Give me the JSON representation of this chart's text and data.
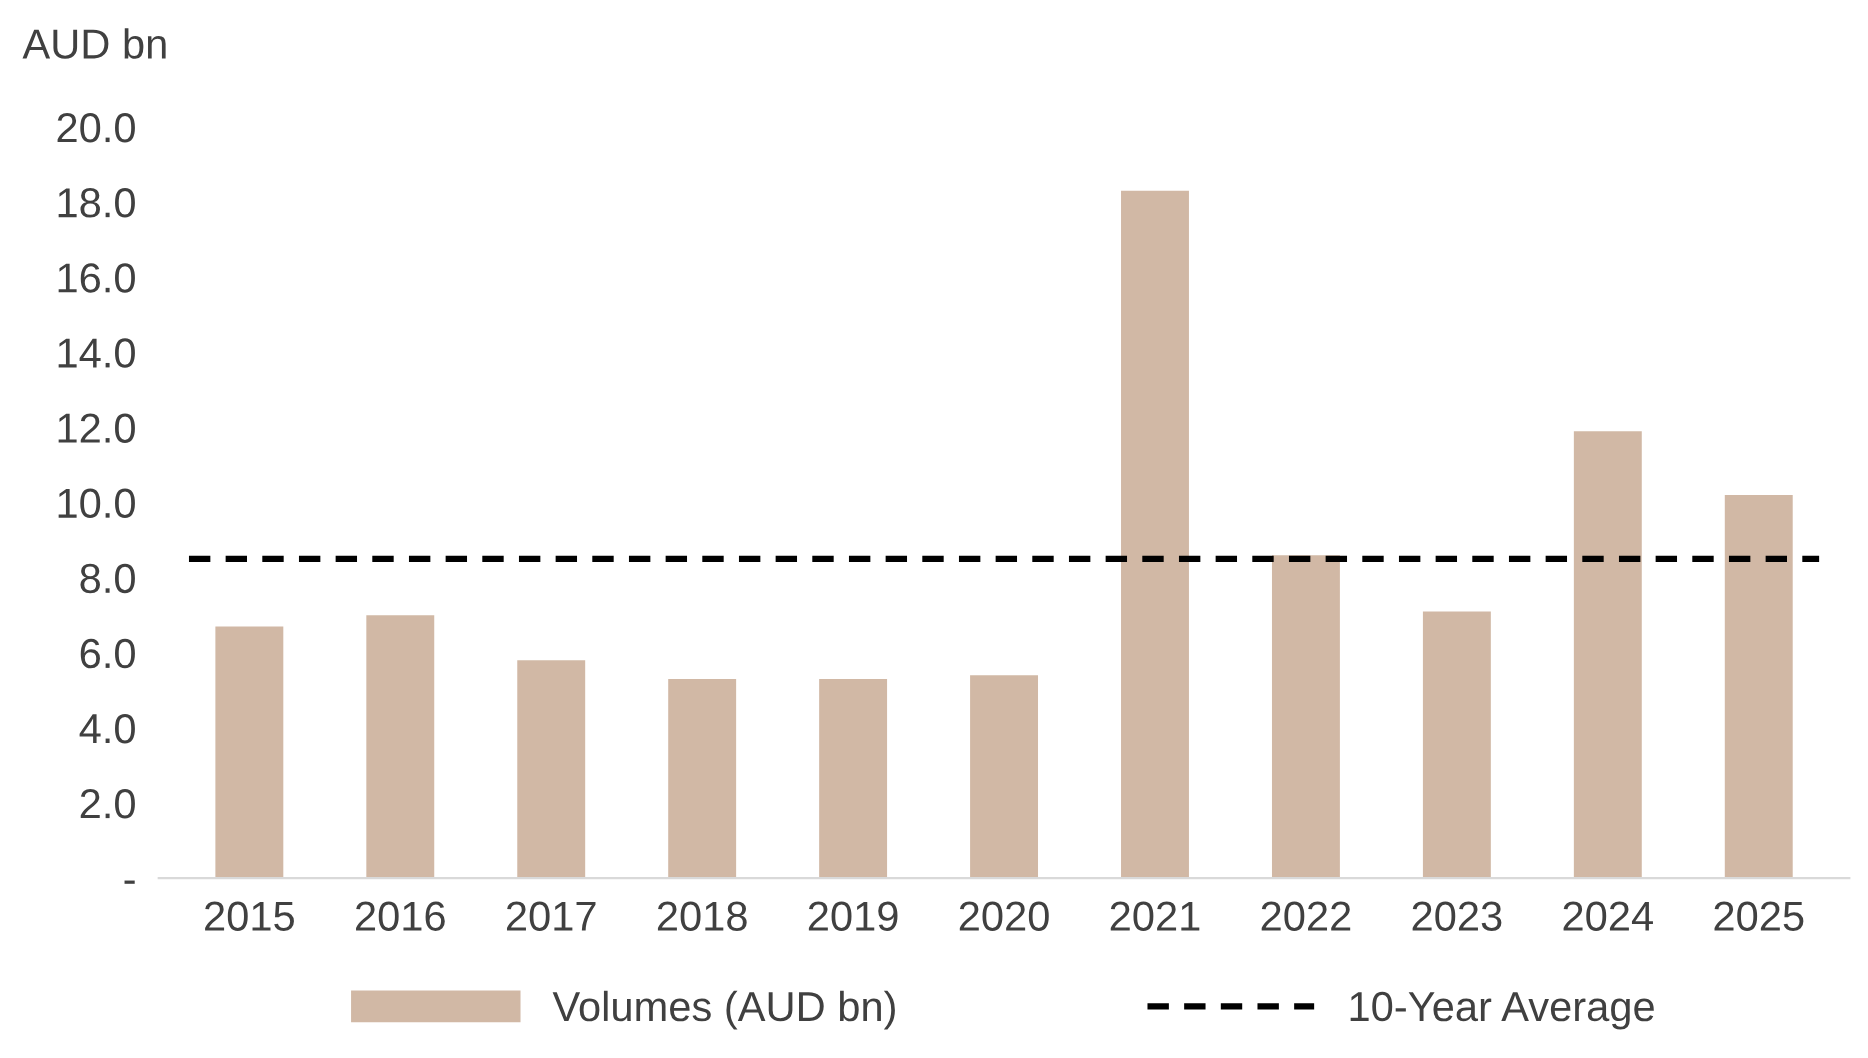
{
  "chart_data": {
    "type": "bar",
    "ylabel": "AUD bn",
    "categories": [
      "2015",
      "2016",
      "2017",
      "2018",
      "2019",
      "2020",
      "2021",
      "2022",
      "2023",
      "2024",
      "2025"
    ],
    "series": [
      {
        "name": "Volumes (AUD bn)",
        "color": "#d1b8a5",
        "values": [
          6.7,
          7.0,
          5.8,
          5.3,
          5.3,
          5.4,
          18.3,
          8.6,
          7.1,
          11.9,
          10.2
        ]
      }
    ],
    "ref_lines": [
      {
        "axis": "y",
        "value": 8.5,
        "label": "10-Year Average",
        "color": "#000000",
        "line_style": "dashed"
      }
    ],
    "ylim": [
      0,
      20
    ],
    "yticks": [
      {
        "value": 0,
        "label": "-"
      },
      {
        "value": 2,
        "label": "2.0"
      },
      {
        "value": 4,
        "label": "4.0"
      },
      {
        "value": 6,
        "label": "6.0"
      },
      {
        "value": 8,
        "label": "8.0"
      },
      {
        "value": 10,
        "label": "10.0"
      },
      {
        "value": 12,
        "label": "12.0"
      },
      {
        "value": 14,
        "label": "14.0"
      },
      {
        "value": 16,
        "label": "16.0"
      },
      {
        "value": 18,
        "label": "18.0"
      },
      {
        "value": 20,
        "label": "20.0"
      }
    ],
    "grid": false,
    "legend": "bottom"
  }
}
